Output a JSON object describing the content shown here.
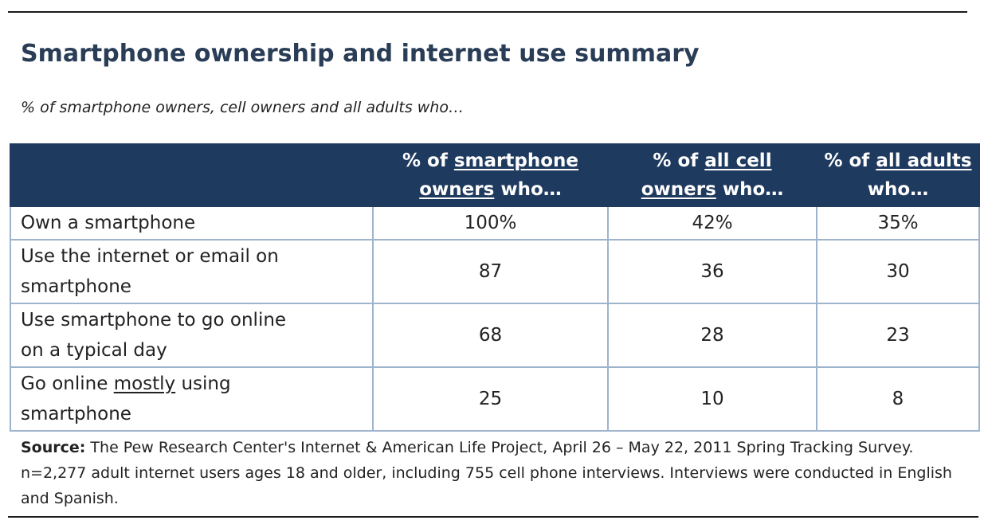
{
  "title": "Smartphone ownership and internet use summary",
  "subtitle": "% of smartphone owners, cell owners and all adults who…",
  "chart_data": {
    "type": "table",
    "title": "Smartphone ownership and internet use summary",
    "subtitle": "% of smartphone owners, cell owners and all adults who…",
    "columns": [
      {
        "pre": "% of ",
        "underlined": "smartphone owners",
        "post": " who…",
        "line1_pre": "% of ",
        "line1_u": "smartphone",
        "line2_u": "owners",
        "line2_post": " who…"
      },
      {
        "pre": "% of ",
        "underlined": "all cell owners",
        "post": " who…",
        "line1_pre": "% of ",
        "line1_u": "all cell",
        "line2_u": "owners",
        "line2_post": " who…"
      },
      {
        "pre": "% of ",
        "underlined": "all adults",
        "post": " who…",
        "line1_pre": "% of ",
        "line1_u": "all adults",
        "line2_u": "",
        "line2_post": "who…"
      }
    ],
    "rows": [
      {
        "line1": "Own a smartphone",
        "line2": "",
        "values": [
          "100%",
          "42%",
          "35%"
        ]
      },
      {
        "line1": "Use the internet or email on",
        "line2": "smartphone",
        "values": [
          "87",
          "36",
          "30"
        ]
      },
      {
        "line1": "Use smartphone to go online",
        "line2": "on a typical day",
        "values": [
          "68",
          "28",
          "23"
        ]
      },
      {
        "line1_pre": "Go online ",
        "line1_u": "mostly",
        "line1_post": " using",
        "line2": "smartphone",
        "values": [
          "25",
          "10",
          "8"
        ]
      }
    ]
  },
  "source": {
    "label": "Source:",
    "text": " The Pew Research Center's Internet & American Life Project, April 26 – May 22, 2011 Spring Tracking Survey. n=2,277 adult internet users ages 18 and older, including 755 cell phone interviews. Interviews were conducted in English and Spanish."
  },
  "colors": {
    "title": "#2a3d57",
    "header_bg": "#1f3a5f",
    "header_text": "#ffffff",
    "cell_border": "#9eb3cc"
  }
}
